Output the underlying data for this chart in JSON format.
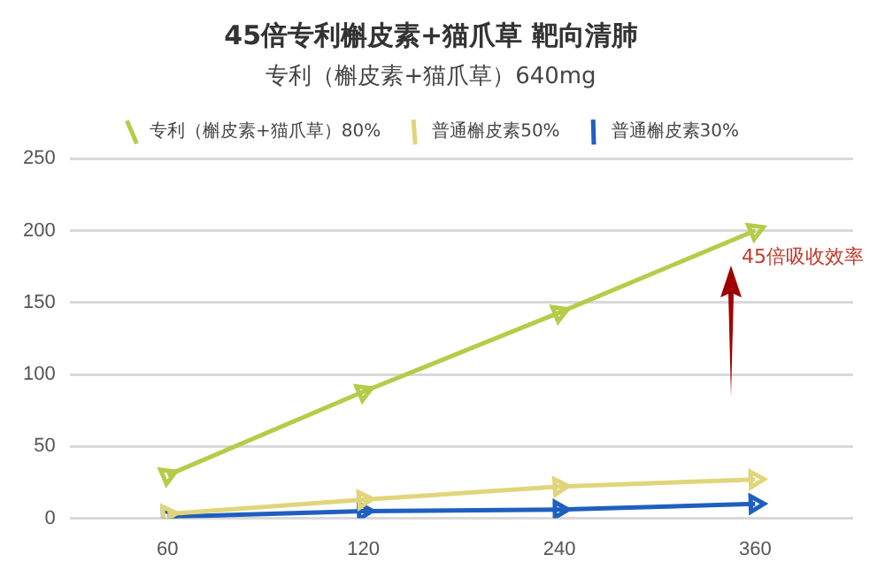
{
  "chart_data": {
    "type": "line",
    "title": "45倍专利槲皮素+猫爪草 靶向清肺",
    "subtitle": "专利（槲皮素+猫爪草）640mg",
    "categories": [
      "60",
      "120",
      "240",
      "360"
    ],
    "series": [
      {
        "name": "普通槲皮素30%",
        "color": "#1f5fbf",
        "values": [
          1,
          5,
          6,
          10
        ]
      },
      {
        "name": "普通槲皮素50%",
        "color": "#e0d57a",
        "values": [
          3,
          13,
          22,
          27
        ]
      },
      {
        "name": "专利（槲皮素+猫爪草）80%",
        "color": "#b5cc4a",
        "values": [
          30,
          88,
          143,
          200
        ]
      }
    ],
    "ylim": [
      0,
      250
    ],
    "yticks": [
      0,
      50,
      100,
      150,
      200,
      250
    ],
    "grid": "y",
    "legend": "top",
    "marker": "triangle",
    "line_style": "solid",
    "annotations": [
      "45倍吸收效率"
    ]
  }
}
